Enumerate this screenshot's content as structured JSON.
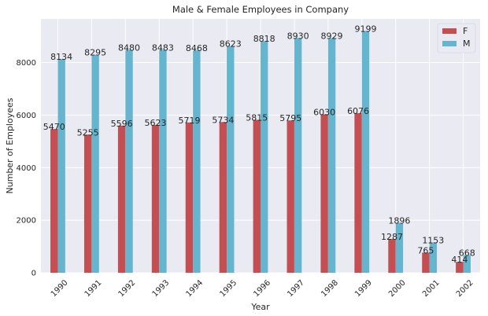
{
  "chart_data": {
    "type": "bar",
    "title": "Male & Female Employees in Company",
    "xlabel": "Year",
    "ylabel": "Number of Employees",
    "categories": [
      "1990",
      "1991",
      "1992",
      "1993",
      "1994",
      "1995",
      "1996",
      "1997",
      "1998",
      "1999",
      "2000",
      "2001",
      "2002"
    ],
    "series": [
      {
        "name": "F",
        "color": "#c44e52",
        "values": [
          5470,
          5255,
          5596,
          5623,
          5719,
          5734,
          5815,
          5795,
          6030,
          6076,
          1287,
          765,
          414
        ]
      },
      {
        "name": "M",
        "color": "#64b5cd",
        "values": [
          8134,
          8295,
          8480,
          8483,
          8468,
          8623,
          8818,
          8930,
          8929,
          9199,
          1896,
          1153,
          668
        ]
      }
    ],
    "ylim": [
      0,
      9660
    ],
    "yticks": [
      0,
      2000,
      4000,
      6000,
      8000
    ],
    "grid": true,
    "legend": "top-right",
    "background": "#eaeaf2"
  }
}
